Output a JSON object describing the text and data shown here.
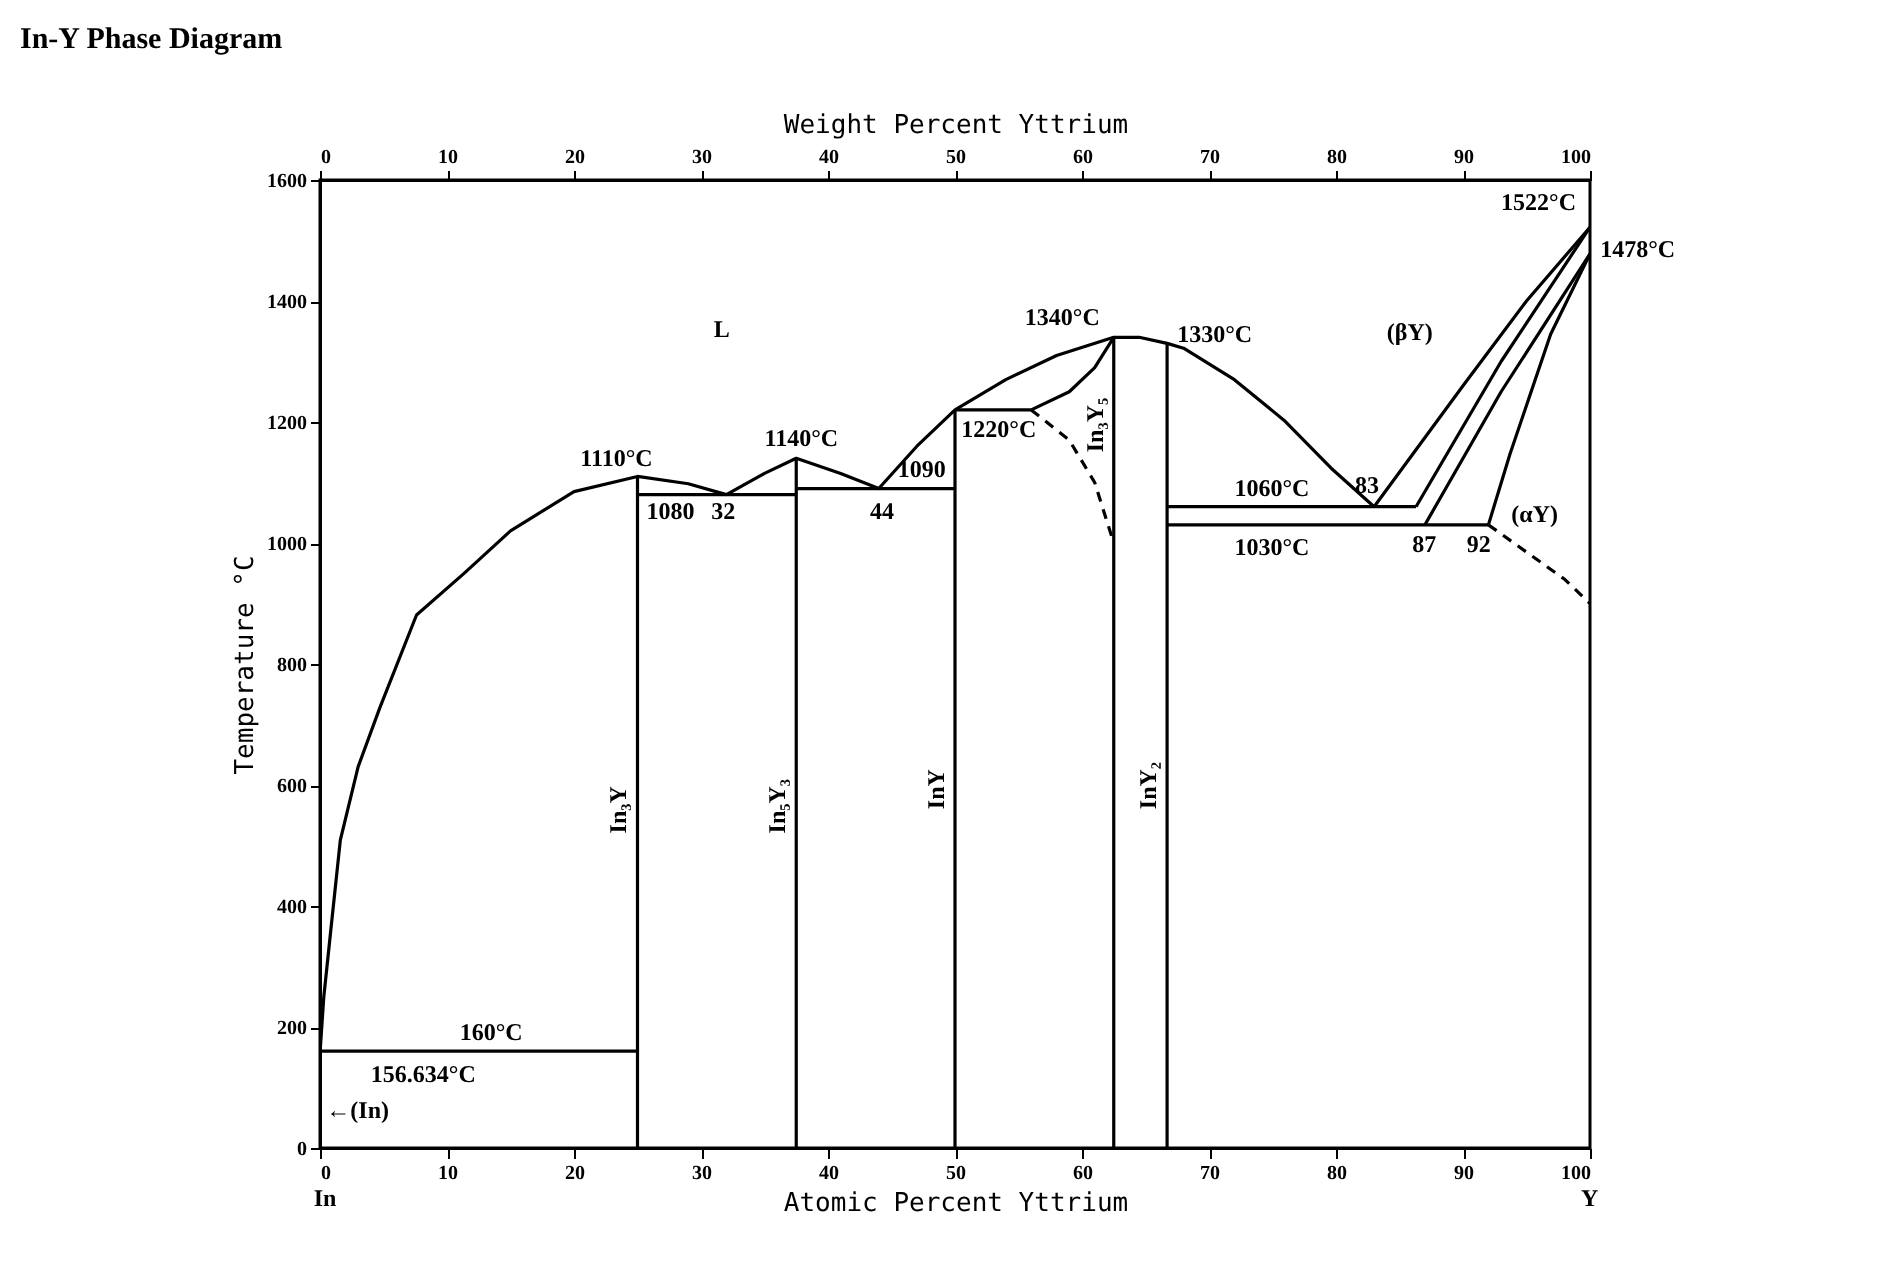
{
  "chart_data": {
    "type": "line",
    "title": "In-Y Phase Diagram",
    "xlabel": "Atomic Percent Yttrium",
    "ylabel": "Temperature °C",
    "x2label": "Weight Percent Yttrium",
    "line_style": "solid",
    "xlim": [
      0,
      100
    ],
    "xticks": [
      0,
      10,
      20,
      30,
      40,
      50,
      60,
      70,
      80,
      90,
      100
    ],
    "x2lim": [
      0,
      100
    ],
    "x2ticks": [
      0,
      10,
      20,
      30,
      40,
      50,
      60,
      70,
      80,
      90,
      100
    ],
    "ylim": [
      0,
      1600
    ],
    "yticks": [
      0,
      200,
      400,
      600,
      800,
      1000,
      1200,
      1400,
      1600
    ],
    "series": [
      {
        "color": "#000000",
        "x": [
          0,
          0.3,
          0.8,
          1.6,
          3,
          4.7,
          7.6,
          11.3,
          15,
          20,
          25,
          29,
          32
        ],
        "values": [
          157,
          250,
          350,
          509,
          630,
          727,
          881,
          949,
          1020,
          1085,
          1110,
          1098,
          1080
        ]
      },
      {
        "color": "#000000",
        "x": [
          32,
          35,
          37.5,
          41,
          44,
          47,
          50,
          54,
          58,
          62.5,
          64.5,
          66.7,
          68,
          72,
          75.9,
          79.6,
          83
        ],
        "values": [
          1080,
          1115,
          1140,
          1115,
          1090,
          1160,
          1220,
          1270,
          1310,
          1340,
          1340,
          1330,
          1322,
          1270,
          1203,
          1124,
          1060
        ]
      },
      {
        "color": "#000000",
        "x": [
          25,
          25
        ],
        "values": [
          0,
          1110
        ]
      },
      {
        "color": "#000000",
        "x": [
          37.5,
          37.5
        ],
        "values": [
          0,
          1140
        ]
      },
      {
        "color": "#000000",
        "x": [
          50,
          50
        ],
        "values": [
          0,
          1220
        ]
      },
      {
        "color": "#000000",
        "x": [
          62.5,
          62.5
        ],
        "values": [
          0,
          1340
        ]
      },
      {
        "color": "#000000",
        "x": [
          66.7,
          66.7
        ],
        "values": [
          0,
          1330
        ]
      },
      {
        "color": "#000000",
        "x": [
          0,
          25
        ],
        "values": [
          160,
          160
        ]
      },
      {
        "color": "#000000",
        "x": [
          25,
          37.5
        ],
        "values": [
          1080,
          1080
        ]
      },
      {
        "color": "#000000",
        "x": [
          37.5,
          50
        ],
        "values": [
          1090,
          1090
        ]
      },
      {
        "color": "#000000",
        "x": [
          50,
          56,
          59,
          61,
          62.5
        ],
        "values": [
          1220,
          1220,
          1250,
          1290,
          1340
        ]
      },
      {
        "color": "#000000",
        "x": [
          66.7,
          86.3
        ],
        "values": [
          1060,
          1060
        ]
      },
      {
        "color": "#000000",
        "x": [
          66.7,
          92
        ],
        "values": [
          1030,
          1030
        ]
      },
      {
        "color": "#000000",
        "line_style": "dashed",
        "x": [
          56,
          59,
          61,
          62.5
        ],
        "values": [
          1220,
          1170,
          1100,
          1000
        ]
      },
      {
        "color": "#000000",
        "x": [
          83,
          90,
          95,
          100
        ],
        "values": [
          1060,
          1260,
          1400,
          1522
        ]
      },
      {
        "color": "#000000",
        "x": [
          86.3,
          93,
          100
        ],
        "values": [
          1060,
          1300,
          1522
        ]
      },
      {
        "color": "#000000",
        "x": [
          87,
          93,
          100
        ],
        "values": [
          1030,
          1250,
          1478
        ]
      },
      {
        "color": "#000000",
        "x": [
          92,
          93.7,
          96.9,
          100
        ],
        "values": [
          1030,
          1147,
          1345,
          1478
        ]
      },
      {
        "color": "#000000",
        "line_style": "dashed",
        "x": [
          92,
          95,
          98,
          100
        ],
        "values": [
          1030,
          985,
          940,
          900
        ]
      }
    ],
    "annotations": [
      "L",
      "1110°C",
      {
        "text": "1080",
        "x": 25.7,
        "y": 1030
      },
      "32",
      "1140°C",
      "44",
      {
        "text": "1090",
        "x": 45.5,
        "y": 1100
      },
      {
        "text": "1220°C",
        "x": 50.5,
        "y": 1165
      },
      "1340°C",
      {
        "text": "1330°C",
        "x": 67.5,
        "y": 1322
      },
      {
        "text": "1060°C",
        "x": 72,
        "y": 1068
      },
      "1030°C",
      {
        "text": "83",
        "x": 81.5,
        "y": 1072
      },
      "87",
      "92",
      "1522°C",
      "1478°C",
      "(βY)",
      {
        "text": "(αY)",
        "x": 93.8,
        "y": 1025
      },
      {
        "text": "160°C",
        "x": 11,
        "y": 168
      },
      "156.634°C",
      "←(In)",
      "In",
      "Y",
      {
        "text": "In₃Y",
        "x": 24.6,
        "y": 520
      },
      {
        "text": "In₅Y₃",
        "x": 37.1,
        "y": 520
      },
      {
        "text": "InY",
        "x": 49.6,
        "y": 560
      },
      {
        "text": "In₃Y₅",
        "x": 62.1,
        "y": 1150
      },
      {
        "text": "InY₂",
        "x": 66.3,
        "y": 560
      }
    ]
  }
}
